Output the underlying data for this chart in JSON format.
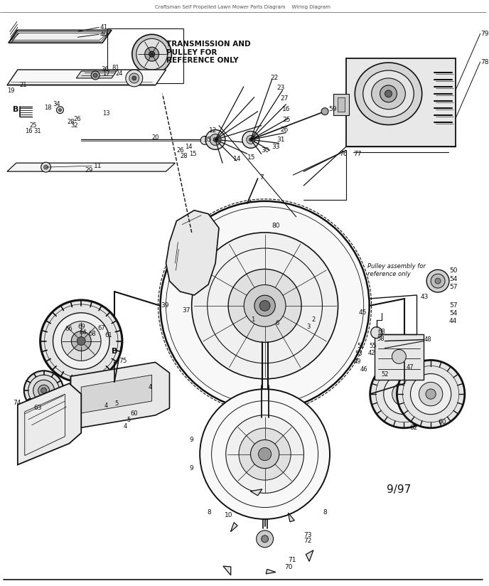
{
  "bg_color": "#ffffff",
  "fig_width": 6.88,
  "fig_height": 8.24,
  "dpi": 100,
  "lc": "#111111",
  "date_label": "9/97",
  "transmission_text": "TRANSMISSION AND\nPULLEY FOR\nREFERENCE ONLY",
  "pulley_text": "Pulley assembly for\nreference only",
  "header_text": "Craftsman Self Propelled Lawn Mower Parts Diagram    Wiring Diagram"
}
